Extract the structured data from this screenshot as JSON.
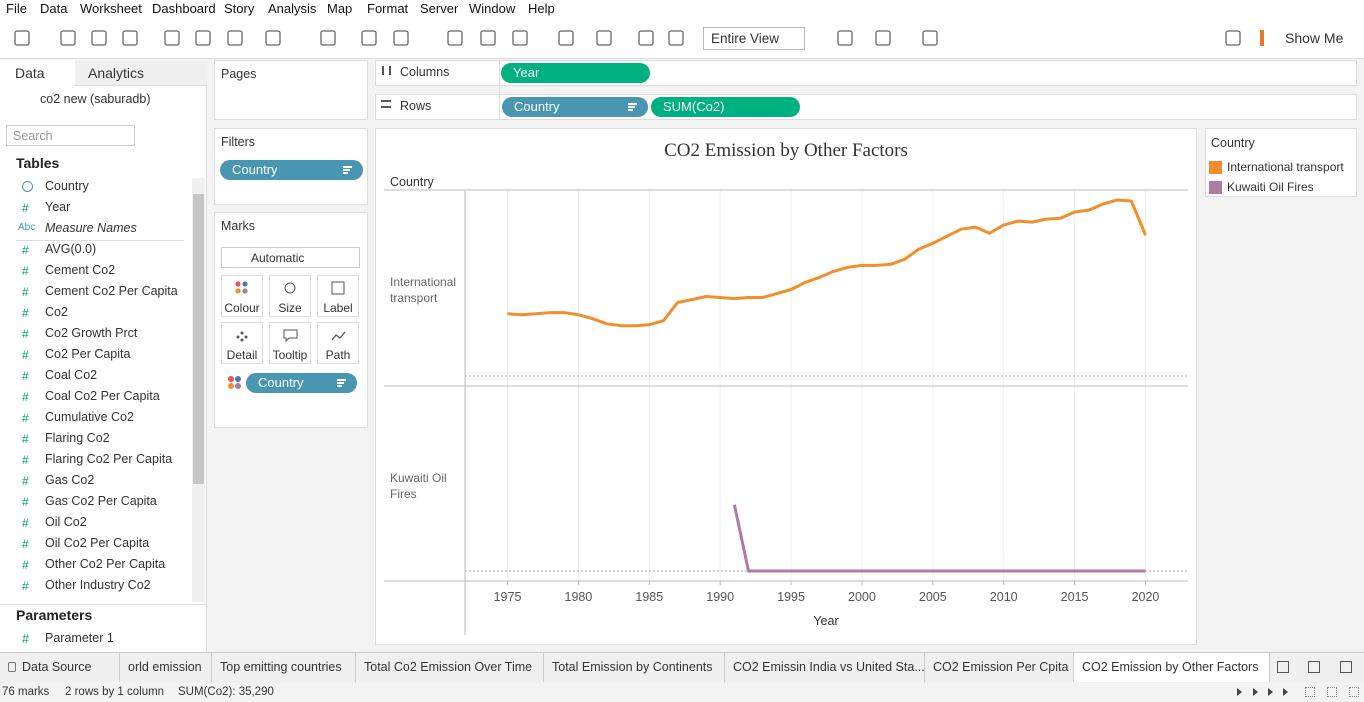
{
  "menu": [
    "File",
    "Data",
    "Worksheet",
    "Dashboard",
    "Story",
    "Analysis",
    "Map",
    "Format",
    "Server",
    "Window",
    "Help"
  ],
  "toolbar": {
    "view": "Entire View",
    "show_me": "Show Me"
  },
  "data_pane": {
    "tabs": [
      "Data",
      "Analytics"
    ],
    "source": "co2 new (saburadb)",
    "search_placeholder": "Search",
    "tables_heading": "Tables",
    "fields": [
      {
        "name": "Country"
      },
      {
        "icon": "#",
        "name": "Year"
      },
      {
        "icon": "Abc",
        "name": "Measure Names"
      },
      {
        "icon": "#",
        "name": "AVG(0.0)"
      },
      {
        "icon": "#",
        "name": "Cement Co2"
      },
      {
        "icon": "#",
        "name": "Cement Co2 Per Capita"
      },
      {
        "icon": "#",
        "name": "Co2"
      },
      {
        "icon": "#",
        "name": "Co2 Growth Prct"
      },
      {
        "icon": "#",
        "name": "Co2 Per Capita"
      },
      {
        "icon": "#",
        "name": "Coal Co2"
      },
      {
        "icon": "#",
        "name": "Coal Co2 Per Capita"
      },
      {
        "icon": "#",
        "name": "Cumulative Co2"
      },
      {
        "icon": "#",
        "name": "Flaring Co2"
      },
      {
        "icon": "#",
        "name": "Flaring Co2 Per Capita"
      },
      {
        "icon": "#",
        "name": "Gas Co2"
      },
      {
        "icon": "#",
        "name": "Gas Co2 Per Capita"
      },
      {
        "icon": "#",
        "name": "Oil Co2"
      },
      {
        "icon": "#",
        "name": "Oil Co2 Per Capita"
      },
      {
        "icon": "#",
        "name": "Other Co2 Per Capita"
      },
      {
        "icon": "#",
        "name": "Other Industry Co2"
      }
    ],
    "parameters_heading": "Parameters",
    "parameters": [
      {
        "icon": "#",
        "name": "Parameter 1"
      }
    ]
  },
  "shelves": {
    "pages": "Pages",
    "columns": {
      "label": "Columns",
      "pills": [
        "Year"
      ]
    },
    "rows": {
      "label": "Rows",
      "pills": [
        "Country",
        "SUM(Co2)"
      ]
    }
  },
  "filters": {
    "title": "Filters",
    "pills": [
      "Country"
    ]
  },
  "marks": {
    "title": "Marks",
    "mark_type": "Automatic",
    "buttons": [
      "Colour",
      "Size",
      "Label",
      "Detail",
      "Tooltip",
      "Path"
    ],
    "pills": [
      "Country"
    ]
  },
  "chart_data": {
    "type": "line",
    "title": "CO2 Emission by Other Factors",
    "row_header": "Country",
    "x_label": "Year",
    "legend_title": "Country",
    "grid": true,
    "x": [
      1975,
      1976,
      1977,
      1978,
      1979,
      1980,
      1981,
      1982,
      1983,
      1984,
      1985,
      1986,
      1987,
      1988,
      1989,
      1990,
      1991,
      1992,
      1993,
      1994,
      1995,
      1996,
      1997,
      1998,
      1999,
      2000,
      2001,
      2002,
      2003,
      2004,
      2005,
      2006,
      2007,
      2008,
      2009,
      2010,
      2011,
      2012,
      2013,
      2014,
      2015,
      2016,
      2017,
      2018,
      2019,
      2020
    ],
    "xlim": [
      1972,
      2023
    ],
    "xticks": [
      1975,
      1980,
      1985,
      1990,
      1995,
      2000,
      2005,
      2010,
      2015,
      2020
    ],
    "series": [
      {
        "name": "International transport",
        "color": "#f28e2b",
        "values": [
          446,
          439,
          446,
          454,
          454,
          439,
          410,
          374,
          360,
          360,
          367,
          396,
          526,
          547,
          569,
          562,
          554,
          562,
          562,
          590,
          619,
          670,
          706,
          749,
          778,
          792,
          792,
          799,
          835,
          907,
          950,
          1001,
          1051,
          1066,
          1022,
          1080,
          1109,
          1102,
          1123,
          1130,
          1174,
          1188,
          1231,
          1260,
          1253,
          1008
        ]
      },
      {
        "name": "Kuwaiti Oil Fires",
        "color": "#b07aa1",
        "values": [
          null,
          null,
          null,
          null,
          null,
          null,
          null,
          null,
          null,
          null,
          null,
          null,
          null,
          null,
          null,
          null,
          475,
          0,
          0,
          0,
          0,
          0,
          0,
          0,
          0,
          0,
          0,
          0,
          0,
          0,
          0,
          0,
          0,
          0,
          0,
          0,
          0,
          0,
          0,
          0,
          0,
          0,
          0,
          0,
          0,
          0
        ]
      }
    ]
  },
  "sheet_tabs": [
    "Data Source",
    "orld emission",
    "Top emitting countries",
    "Total Co2 Emission Over Time",
    "Total Emission by Continents",
    "CO2 Emissin India vs United Sta...",
    "CO2 Emission Per Cpita",
    "CO2 Emission by Other Factors"
  ],
  "status": [
    "76 marks",
    "2 rows by 1 column",
    "SUM(Co2): 35,290"
  ]
}
